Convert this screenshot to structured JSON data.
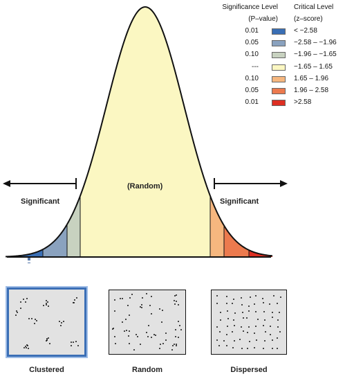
{
  "legend": {
    "col1_header_line1": "Significance Level",
    "col1_header_line2": "(P–value)",
    "col2_header_line1": "Critical Level",
    "col2_header_line2": "(z–score)",
    "rows": [
      {
        "p": "0.01",
        "z": "< −2.58",
        "color": "#3a6fb5"
      },
      {
        "p": "0.05",
        "z": "−2.58 – −1.96",
        "color": "#8aa2bf"
      },
      {
        "p": "0.10",
        "z": "−1.96 – −1.65",
        "color": "#c8d2c0"
      },
      {
        "p": "---",
        "z": "−1.65 – 1.65",
        "color": "#fbf7c2"
      },
      {
        "p": "0.10",
        "z": "1.65 – 1.96",
        "color": "#f6b77f"
      },
      {
        "p": "0.05",
        "z": "1.96 – 2.58",
        "color": "#ec7a4e"
      },
      {
        "p": "0.01",
        "z": ">2.58",
        "color": "#dd2f22"
      }
    ]
  },
  "curve": {
    "center_label": "(Random)",
    "left_label": "Significant",
    "right_label": "Significant"
  },
  "panels": [
    {
      "label": "Clustered",
      "pattern": "clustered",
      "highlighted": true
    },
    {
      "label": "Random",
      "pattern": "random",
      "highlighted": false
    },
    {
      "label": "Dispersed",
      "pattern": "dispersed",
      "highlighted": false
    }
  ]
}
